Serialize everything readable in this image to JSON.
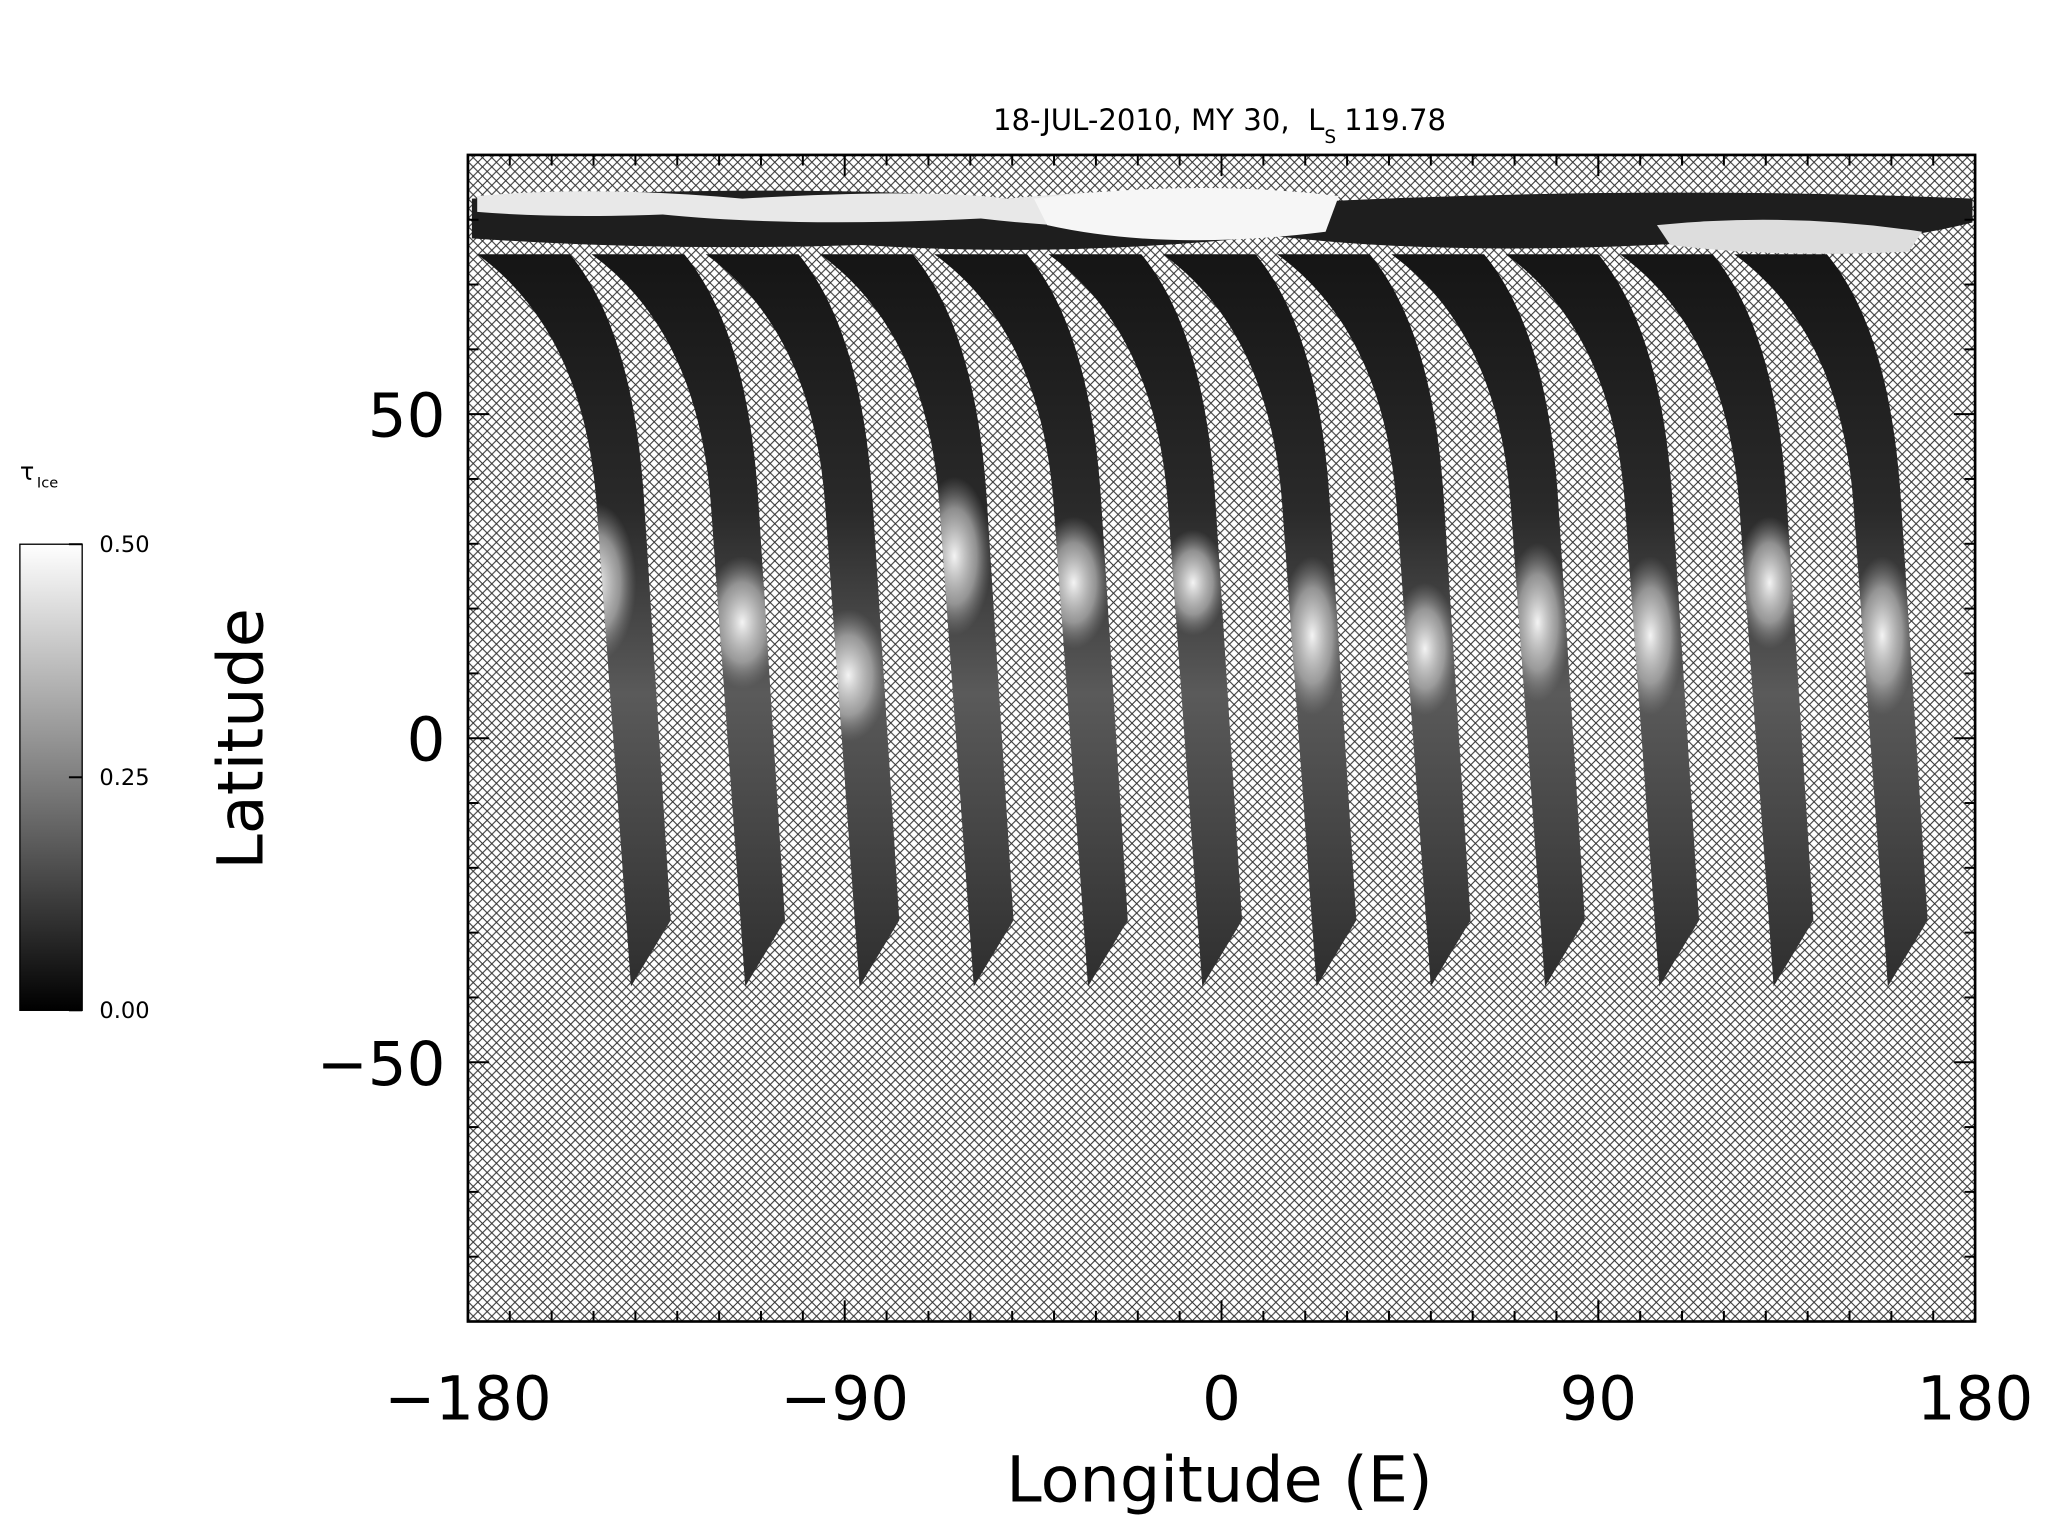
{
  "chart_data": {
    "type": "map",
    "title": "18-JUL-2010, MY 30,  L",
    "title_subscript": "S",
    "title_suffix": "119.78",
    "x_label": "Longitude (E)",
    "y_label": "Latitude",
    "xlim": [
      -180,
      180
    ],
    "ylim": [
      -90,
      90
    ],
    "xticks": [
      {
        "value": -180,
        "label": "−180"
      },
      {
        "value": -90,
        "label": "−90"
      },
      0,
      90,
      180
    ],
    "yticks": [
      {
        "value": -50,
        "label": "−50"
      },
      0,
      50
    ],
    "x_minor_ticks": [
      -170,
      -160,
      -150,
      -140,
      -130,
      -120,
      -110,
      -100,
      -80,
      -70,
      -60,
      -50,
      -40,
      -30,
      -20,
      -10,
      10,
      20,
      30,
      40,
      50,
      60,
      70,
      80,
      100,
      110,
      120,
      130,
      140,
      150,
      160,
      170
    ],
    "y_minor_ticks": [
      -80,
      -70,
      -60,
      -40,
      -30,
      -20,
      -10,
      10,
      20,
      30,
      40,
      60,
      70,
      80
    ],
    "colorbar": {
      "label": "τ",
      "label_subscript": "Ice",
      "range": [
        0,
        0.5
      ],
      "ticks": [
        {
          "value": 0,
          "label": "0.00"
        },
        {
          "value": 0.25,
          "label": "0.25"
        },
        {
          "value": 0.5,
          "label": "0.50"
        }
      ],
      "colors": [
        "#000000",
        "#ffffff"
      ]
    }
  }
}
